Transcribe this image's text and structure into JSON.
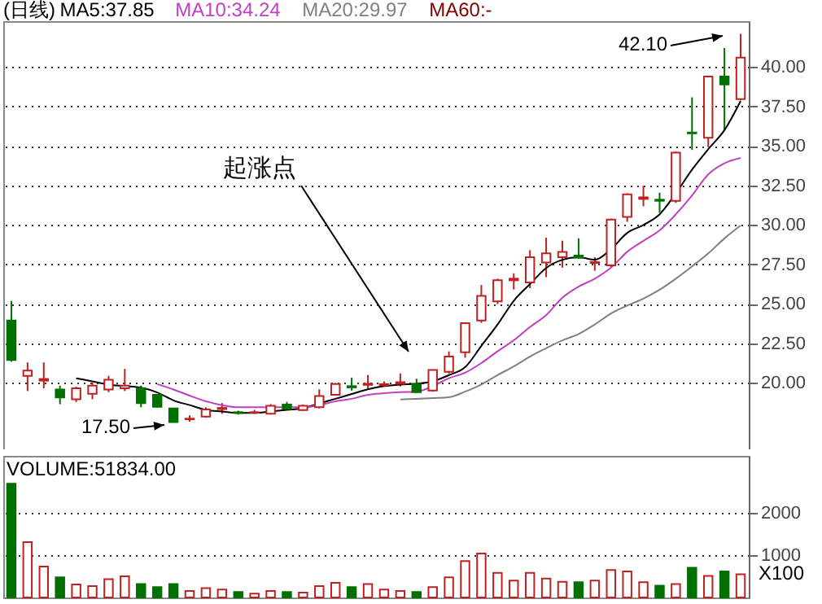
{
  "chart_data": [
    {
      "type": "candlestick",
      "title": "(日线)",
      "categories": [
        null,
        null,
        null,
        null,
        null,
        null,
        null,
        null,
        null,
        null,
        null,
        null,
        null,
        null,
        null,
        null,
        null,
        null,
        null,
        null,
        null,
        null,
        null,
        null,
        null,
        null,
        null,
        null,
        null,
        null,
        null,
        null,
        null,
        null,
        null,
        null,
        null,
        null,
        null,
        null,
        null,
        null,
        null,
        null,
        null,
        null
      ],
      "ohlc": [
        [
          23.95,
          25.2,
          21.35,
          21.45
        ],
        [
          20.45,
          21.3,
          19.49,
          20.79
        ],
        [
          20.15,
          21.3,
          19.66,
          20.25
        ],
        [
          19.59,
          19.83,
          18.66,
          19.08
        ],
        [
          18.97,
          19.76,
          18.8,
          19.66
        ],
        [
          19.32,
          20.03,
          18.97,
          19.83
        ],
        [
          19.59,
          20.45,
          19.42,
          20.21
        ],
        [
          19.66,
          20.89,
          19.49,
          19.83
        ],
        [
          19.66,
          19.83,
          18.46,
          18.73
        ],
        [
          19.25,
          19.3,
          18.46,
          18.49
        ],
        [
          18.39,
          18.42,
          17.5,
          17.53
        ],
        [
          17.7,
          17.95,
          17.55,
          17.74
        ],
        [
          17.88,
          18.46,
          17.81,
          18.32
        ],
        [
          18.35,
          18.73,
          18.05,
          18.42
        ],
        [
          18.15,
          18.25,
          18.0,
          18.1
        ],
        [
          18.12,
          18.3,
          18.05,
          18.15
        ],
        [
          18.05,
          18.66,
          18.0,
          18.56
        ],
        [
          18.63,
          18.8,
          18.3,
          18.36
        ],
        [
          18.29,
          18.63,
          18.25,
          18.56
        ],
        [
          18.46,
          19.6,
          18.4,
          19.18
        ],
        [
          19.25,
          20.0,
          19.2,
          19.93
        ],
        [
          19.8,
          20.34,
          19.52,
          19.72
        ],
        [
          19.88,
          20.5,
          19.6,
          19.95
        ],
        [
          19.85,
          20.1,
          19.78,
          19.93
        ],
        [
          19.95,
          20.6,
          19.78,
          20.05
        ],
        [
          19.93,
          20.27,
          19.35,
          19.42
        ],
        [
          19.52,
          20.85,
          19.45,
          20.82
        ],
        [
          20.71,
          22.0,
          20.6,
          21.67
        ],
        [
          21.94,
          23.8,
          21.6,
          23.78
        ],
        [
          23.95,
          26.2,
          23.8,
          25.51
        ],
        [
          25.17,
          26.6,
          25.0,
          26.5
        ],
        [
          26.5,
          26.94,
          25.92,
          26.6
        ],
        [
          26.36,
          28.4,
          26.0,
          27.96
        ],
        [
          27.62,
          29.2,
          26.7,
          28.2
        ],
        [
          27.96,
          29.0,
          27.3,
          28.3
        ],
        [
          28.06,
          29.15,
          27.86,
          27.93
        ],
        [
          27.6,
          27.96,
          27.1,
          27.65
        ],
        [
          27.45,
          30.4,
          27.3,
          30.34
        ],
        [
          30.51,
          32.0,
          30.2,
          31.94
        ],
        [
          31.65,
          32.48,
          31.19,
          31.75
        ],
        [
          31.6,
          32.04,
          30.78,
          31.53
        ],
        [
          31.53,
          34.65,
          31.4,
          34.58
        ],
        [
          35.85,
          38.08,
          34.75,
          35.8
        ],
        [
          35.52,
          39.45,
          34.93,
          39.4
        ],
        [
          39.4,
          41.2,
          36.0,
          38.9
        ],
        [
          37.97,
          42.1,
          37.9,
          40.59
        ]
      ],
      "series": [
        {
          "name": "MA5:37.85",
          "type": "line",
          "color": "#000000",
          "values": [
            null,
            null,
            null,
            null,
            20.3,
            20.1,
            19.9,
            19.8,
            19.7,
            19.4,
            18.9,
            18.6,
            18.3,
            18.2,
            18.1,
            18.1,
            18.2,
            18.3,
            18.4,
            18.7,
            19.0,
            19.3,
            19.6,
            19.8,
            19.9,
            19.95,
            20.1,
            20.5,
            21.0,
            22.35,
            23.7,
            25.2,
            26.26,
            27.28,
            27.8,
            27.96,
            27.8,
            28.47,
            29.5,
            30.0,
            30.68,
            32.0,
            33.5,
            34.8,
            36.0,
            37.85
          ]
        },
        {
          "name": "MA10:34.24",
          "type": "line",
          "color": "#c040c0",
          "values": [
            null,
            null,
            null,
            null,
            null,
            null,
            null,
            null,
            null,
            19.93,
            19.59,
            19.2,
            18.84,
            18.6,
            18.46,
            18.46,
            18.46,
            18.46,
            18.46,
            18.6,
            18.84,
            19.0,
            19.25,
            19.35,
            19.42,
            19.45,
            19.8,
            20.3,
            20.65,
            21.26,
            22.0,
            22.7,
            23.54,
            24.3,
            25.4,
            26.1,
            26.6,
            27.3,
            28.3,
            29.0,
            29.66,
            30.68,
            31.87,
            33.2,
            33.9,
            34.24
          ]
        },
        {
          "name": "MA20:29.97",
          "type": "line",
          "color": "#808080",
          "values": [
            null,
            null,
            null,
            null,
            null,
            null,
            null,
            null,
            null,
            null,
            null,
            null,
            null,
            null,
            null,
            null,
            null,
            null,
            null,
            null,
            null,
            null,
            null,
            null,
            18.95,
            19.0,
            19.05,
            19.1,
            19.45,
            19.9,
            20.5,
            21.05,
            21.67,
            22.2,
            22.7,
            23.1,
            23.7,
            24.4,
            24.9,
            25.34,
            25.9,
            26.6,
            27.38,
            28.2,
            29.15,
            29.97
          ]
        }
      ],
      "ylim": [
        15.8,
        42.9
      ],
      "yticks": [
        {
          "value": 20,
          "label": "20.00"
        },
        {
          "value": 22.5,
          "label": "22.50"
        },
        {
          "value": 25,
          "label": "25.00"
        },
        {
          "value": 27.5,
          "label": "27.50"
        },
        {
          "value": 30,
          "label": "30.00"
        },
        {
          "value": 32.5,
          "label": "32.50"
        },
        {
          "value": 35,
          "label": "35.00"
        },
        {
          "value": 37.5,
          "label": "37.50"
        },
        {
          "value": 40,
          "label": "40.00"
        }
      ],
      "grid": "y",
      "tick_labels": "y",
      "annotations": [
        "MA60:-",
        "起涨点",
        "17.50",
        "42.10"
      ]
    },
    {
      "type": "bar",
      "title": "VOLUME:51834.00",
      "categories": [
        null,
        null,
        null,
        null,
        null,
        null,
        null,
        null,
        null,
        null,
        null,
        null,
        null,
        null,
        null,
        null,
        null,
        null,
        null,
        null,
        null,
        null,
        null,
        null,
        null,
        null,
        null,
        null,
        null,
        null,
        null,
        null,
        null,
        null,
        null,
        null,
        null,
        null,
        null,
        null,
        null,
        null,
        null,
        null,
        null,
        null
      ],
      "values": [
        2690,
        1310,
        730,
        475,
        310,
        270,
        435,
        500,
        320,
        245,
        320,
        155,
        220,
        190,
        130,
        90,
        155,
        130,
        115,
        270,
        345,
        245,
        320,
        190,
        155,
        130,
        245,
        475,
        860,
        1040,
        580,
        400,
        580,
        450,
        370,
        360,
        400,
        650,
        615,
        360,
        280,
        320,
        705,
        510,
        615,
        550
      ],
      "colors": [
        "#007000",
        "#c02020",
        "#c02020",
        "#007000",
        "#c02020",
        "#c02020",
        "#c02020",
        "#c02020",
        "#007000",
        "#007000",
        "#007000",
        "#c02020",
        "#c02020",
        "#c02020",
        "#007000",
        "#c02020",
        "#c02020",
        "#007000",
        "#c02020",
        "#c02020",
        "#c02020",
        "#007000",
        "#c02020",
        "#c02020",
        "#c02020",
        "#007000",
        "#c02020",
        "#c02020",
        "#c02020",
        "#c02020",
        "#c02020",
        "#c02020",
        "#c02020",
        "#c02020",
        "#c02020",
        "#007000",
        "#c02020",
        "#c02020",
        "#c02020",
        "#c02020",
        "#007000",
        "#c02020",
        "#007000",
        "#c02020",
        "#007000",
        "#c02020"
      ],
      "ylim": [
        0,
        3350
      ],
      "yticks": [
        {
          "value": 1000,
          "label": "1000"
        },
        {
          "value": 2000,
          "label": "2000"
        }
      ],
      "grid": "y",
      "tick_labels": "y",
      "annotations": [
        "X100"
      ]
    }
  ]
}
